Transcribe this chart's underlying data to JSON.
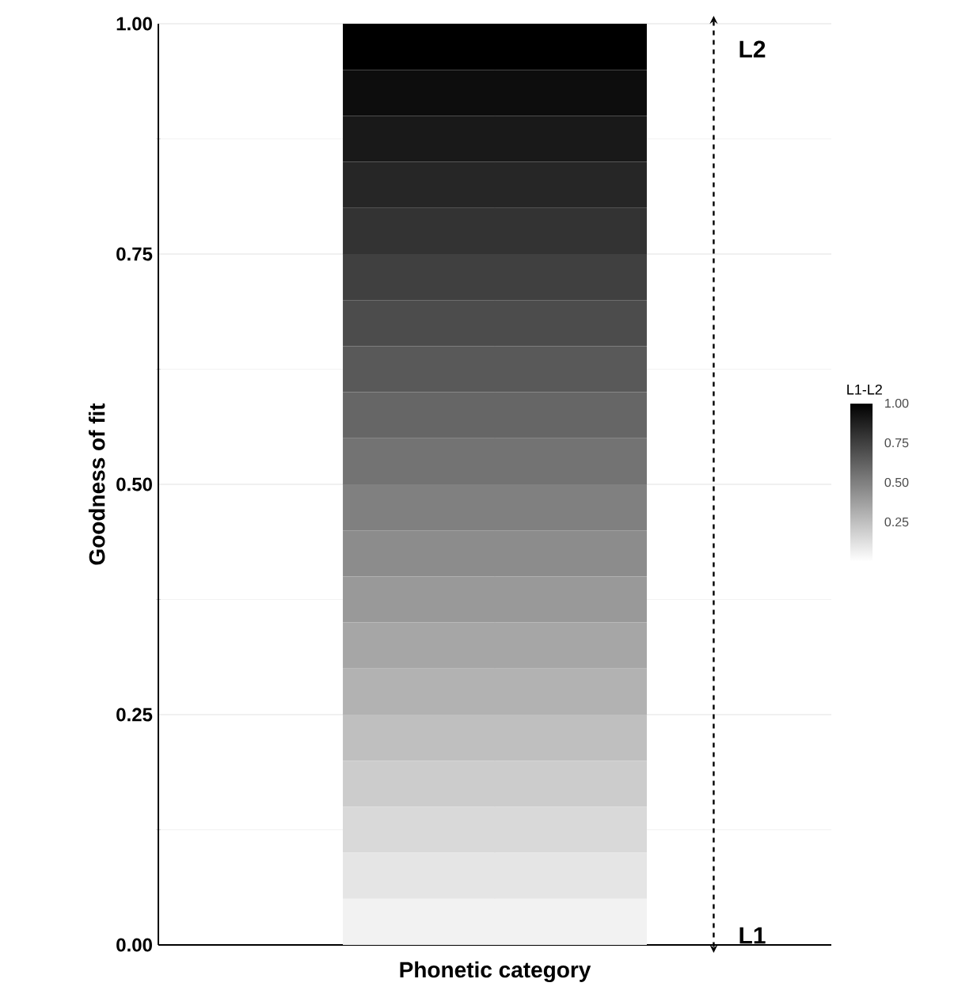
{
  "chart_data": {
    "type": "heatmap",
    "xlabel": "Phonetic category",
    "ylabel": "Goodness of fit",
    "clabel": "L1-L2",
    "categories": [
      null
    ],
    "cells": [
      [
        1.0
      ],
      [
        0.95
      ],
      [
        0.9
      ],
      [
        0.85
      ],
      [
        0.8
      ],
      [
        0.75
      ],
      [
        0.7
      ],
      [
        0.65
      ],
      [
        0.6
      ],
      [
        0.55
      ],
      [
        0.5
      ],
      [
        0.45
      ],
      [
        0.4
      ],
      [
        0.35
      ],
      [
        0.3
      ],
      [
        0.25
      ],
      [
        0.2
      ],
      [
        0.15
      ],
      [
        0.1
      ],
      [
        0.05
      ]
    ],
    "clim": [
      0,
      1
    ],
    "cticks": [
      {
        "value": 0.25,
        "label": "0.25"
      },
      {
        "value": 0.5,
        "label": "0.50"
      },
      {
        "value": 0.75,
        "label": "0.75"
      },
      {
        "value": 1,
        "label": "1.00"
      }
    ],
    "ylim": [
      0,
      1
    ],
    "yticks": [
      {
        "value": 0,
        "label": "0.00"
      },
      {
        "value": 0.25,
        "label": "0.25"
      },
      {
        "value": 0.5,
        "label": "0.50"
      },
      {
        "value": 0.75,
        "label": "0.75"
      },
      {
        "value": 1,
        "label": "1.00"
      }
    ],
    "grid": true,
    "annotations": [
      "L2",
      "L1"
    ]
  }
}
